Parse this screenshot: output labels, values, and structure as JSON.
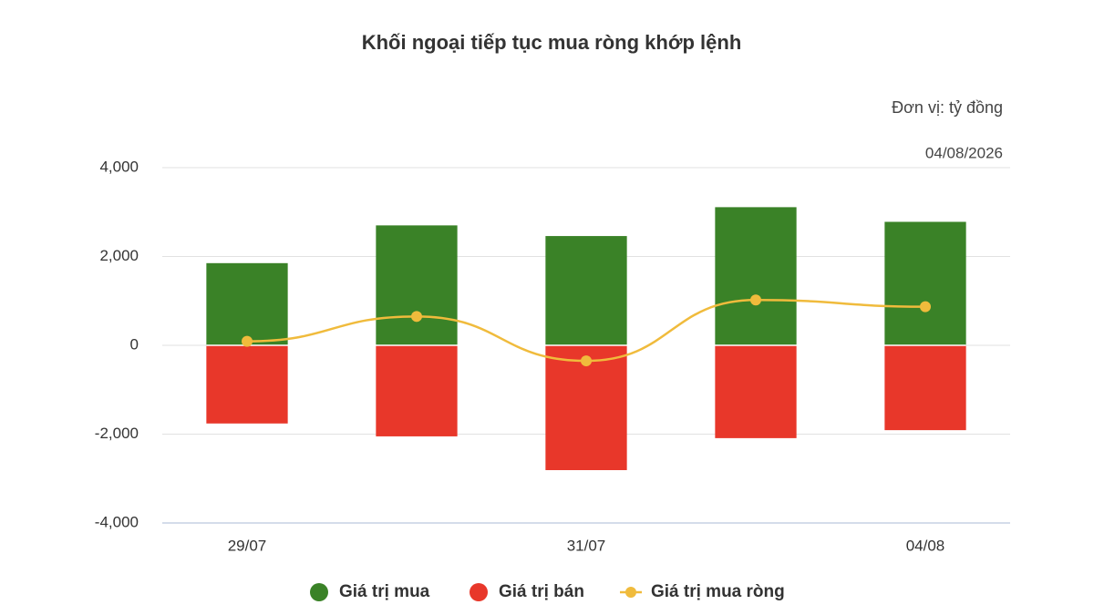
{
  "chart_data": {
    "type": "bar",
    "title": "Khối ngoại tiếp tục mua ròng khớp lệnh",
    "subtitle": "Đơn vị: tỷ đồng",
    "date": "04/08/2026",
    "categories": [
      "29/07",
      null,
      "31/07",
      null,
      "04/08"
    ],
    "series": [
      {
        "name": "Giá trị mua",
        "color": "#3a8227",
        "type": "bar",
        "values": [
          1850,
          2700,
          2460,
          3110,
          2780
        ]
      },
      {
        "name": "Giá trị bán",
        "color": "#e8372a",
        "type": "bar",
        "values": [
          -1760,
          -2050,
          -2810,
          -2090,
          -1910
        ]
      },
      {
        "name": "Giá trị mua ròng",
        "color": "#f0bb3c",
        "type": "line",
        "values": [
          90,
          650,
          -350,
          1020,
          870
        ]
      }
    ],
    "ylim": [
      -4000,
      4000
    ],
    "yticks": [
      {
        "value": -4000,
        "label": "-4,000"
      },
      {
        "value": -2000,
        "label": "-2,000"
      },
      0,
      {
        "value": 2000,
        "label": "2,000"
      },
      {
        "value": 4000,
        "label": "4,000"
      }
    ],
    "grid": true,
    "legend": "bottom"
  }
}
